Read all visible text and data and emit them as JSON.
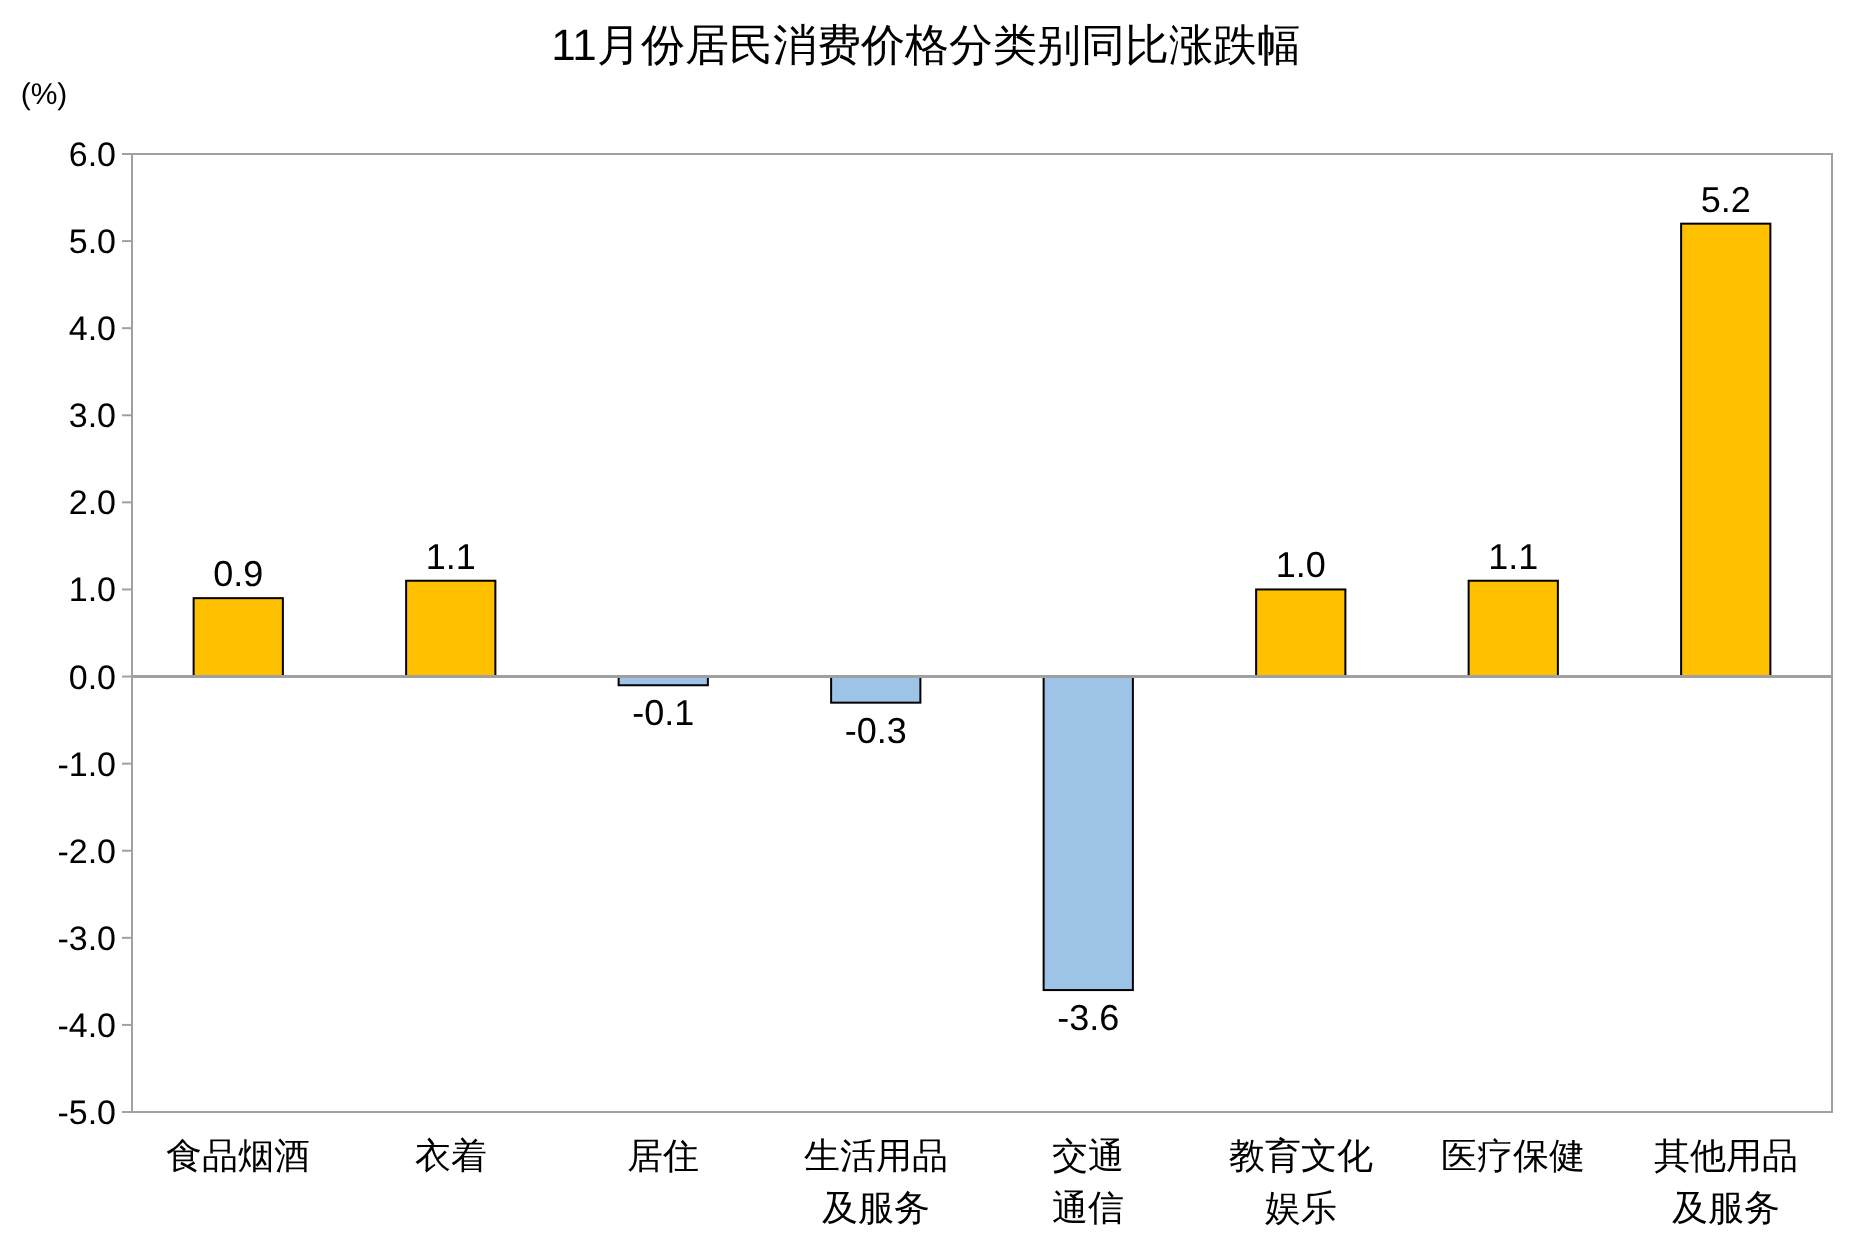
{
  "chart_data": {
    "type": "bar",
    "title": "11月份居民消费价格分类别同比涨跌幅",
    "ylabel": "(%)",
    "categories": [
      "食品烟酒",
      "衣着",
      "居住",
      "生活用品及服务",
      "交通通信",
      "教育文化娱乐",
      "医疗保健",
      "其他用品及服务"
    ],
    "values": [
      0.9,
      1.1,
      -0.1,
      -0.3,
      -3.6,
      1.0,
      1.1,
      5.2
    ],
    "value_labels": [
      "0.9",
      "1.1",
      "-0.1",
      "-0.3",
      "-3.6",
      "1.0",
      "1.1",
      "5.2"
    ],
    "colors": [
      "#ffc000",
      "#ffc000",
      "#9dc3e6",
      "#9dc3e6",
      "#9dc3e6",
      "#ffc000",
      "#ffc000",
      "#ffc000"
    ],
    "ylim": [
      -5,
      6
    ],
    "yticks": [
      {
        "value": -5,
        "label": "-5.0"
      },
      {
        "value": -4,
        "label": "-4.0"
      },
      {
        "value": -3,
        "label": "-3.0"
      },
      {
        "value": -2,
        "label": "-2.0"
      },
      {
        "value": -1,
        "label": "-1.0"
      },
      {
        "value": 0,
        "label": "0.0"
      },
      {
        "value": 1,
        "label": "1.0"
      },
      {
        "value": 2,
        "label": "2.0"
      },
      {
        "value": 3,
        "label": "3.0"
      },
      {
        "value": 4,
        "label": "4.0"
      },
      {
        "value": 5,
        "label": "5.0"
      },
      {
        "value": 6,
        "label": "6.0"
      }
    ]
  }
}
